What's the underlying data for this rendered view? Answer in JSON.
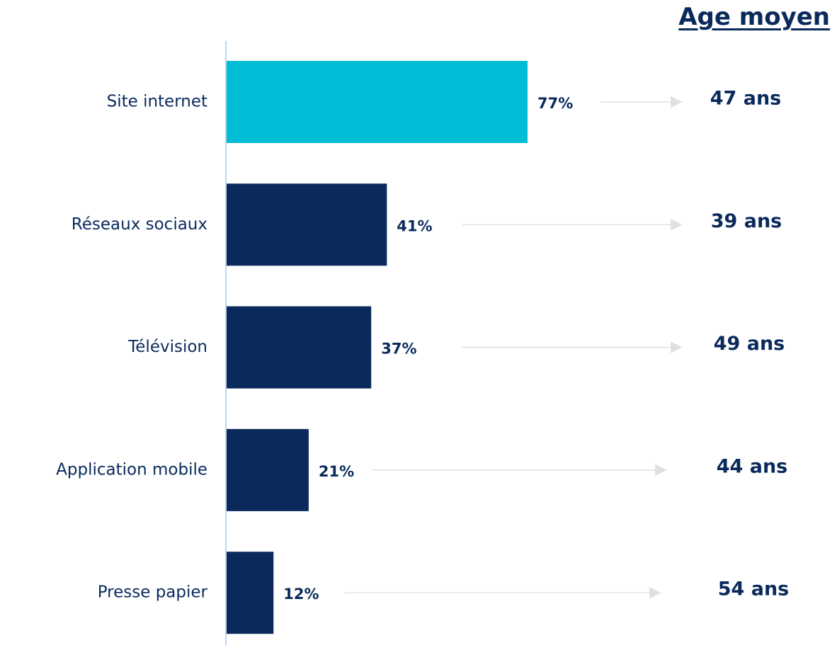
{
  "age_title": "Age moyen",
  "colors": {
    "highlight": "#00bcd4",
    "bar": "#0a2a5c",
    "arrow": "#e0e0e0",
    "axis": "#b9d7f2",
    "text": "#0a2a5c"
  },
  "chart_data": {
    "type": "bar",
    "orientation": "horizontal",
    "categories": [
      "Site internet",
      "Réseaux sociaux",
      "Télévision",
      "Application mobile",
      "Presse papier"
    ],
    "values": [
      77,
      41,
      37,
      21,
      12
    ],
    "value_labels": [
      "77%",
      "41%",
      "37%",
      "21%",
      "12%"
    ],
    "average_age": [
      "47 ans",
      "39 ans",
      "49 ans",
      "44 ans",
      "54 ans"
    ],
    "highlighted_category": "Site internet",
    "grid": false,
    "legend": "none"
  }
}
